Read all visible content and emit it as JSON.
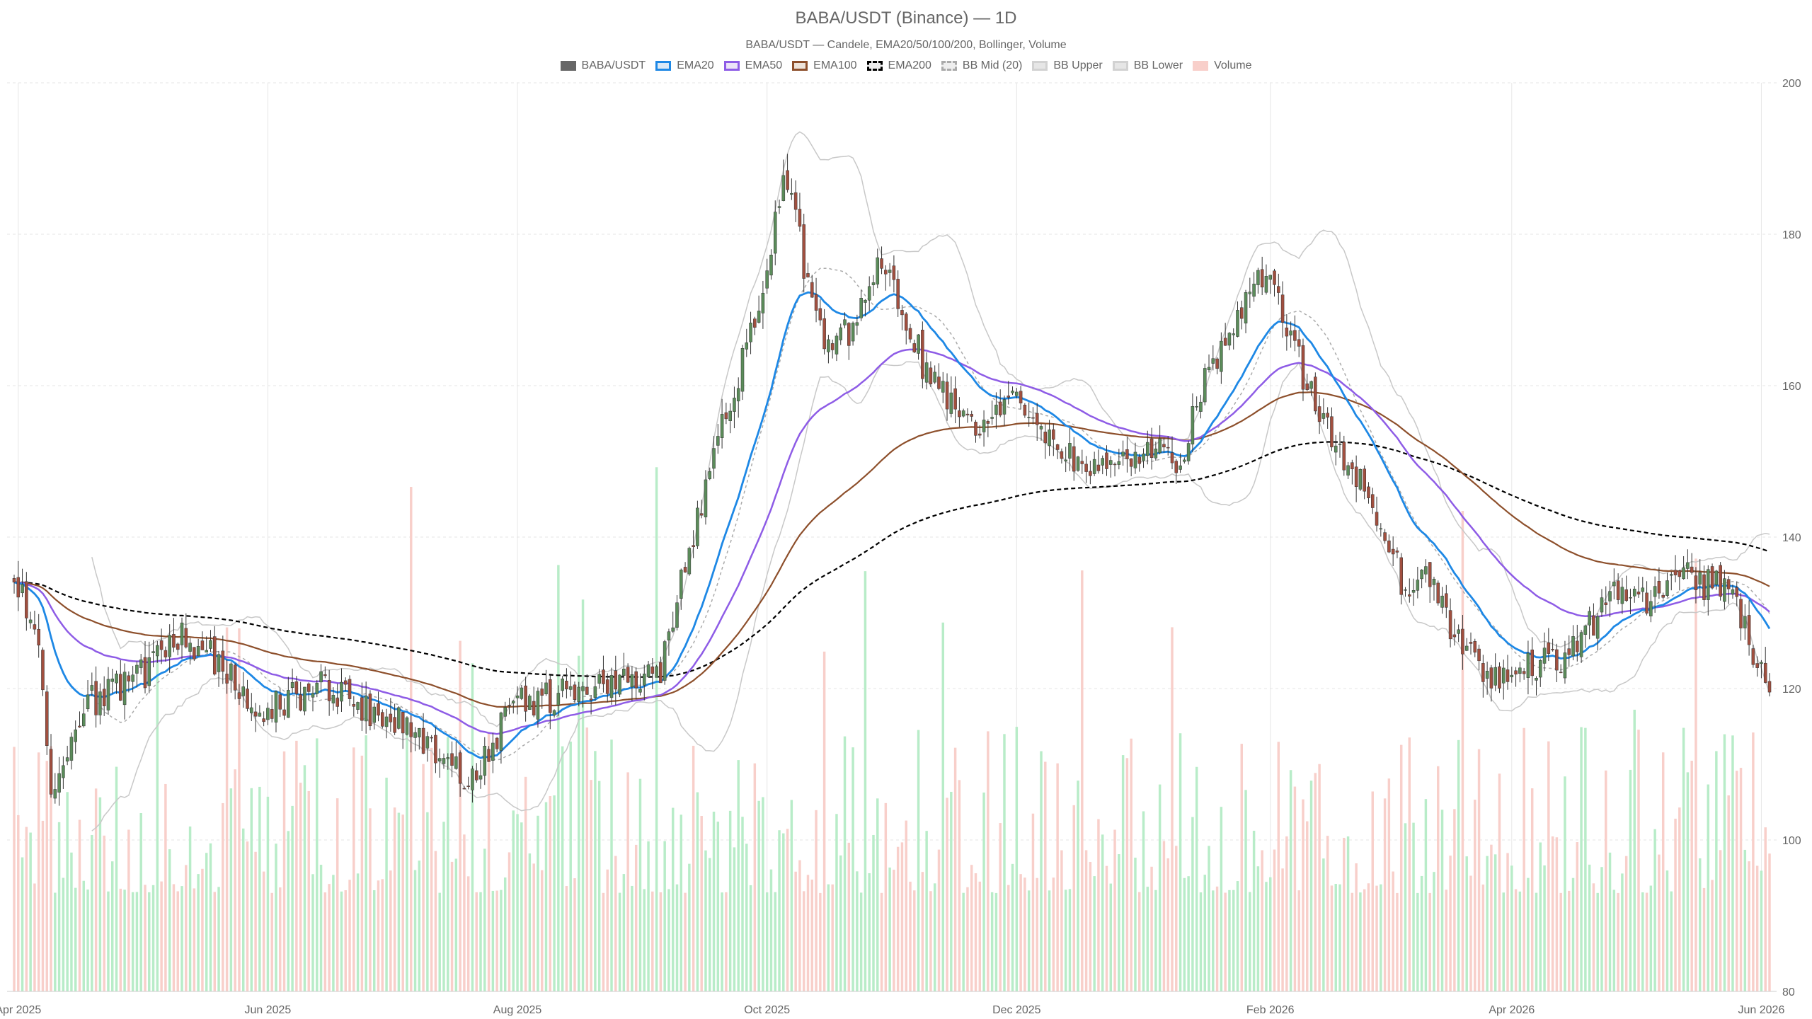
{
  "chart_data": {
    "type": "candlestick",
    "title": "BABA/USDT (Binance) — 1D",
    "subtitle": "BABA/USDT — Candele, EMA20/50/100/200, Bollinger, Volume",
    "legend": [
      {
        "name": "BABA/USDT",
        "fill": "#666666",
        "stroke": "#666666",
        "dash": false
      },
      {
        "name": "EMA20",
        "fill": "#dbe9f6",
        "stroke": "#1e88e5",
        "dash": false
      },
      {
        "name": "EMA50",
        "fill": "#ece3f8",
        "stroke": "#8e5ce6",
        "dash": false
      },
      {
        "name": "EMA100",
        "fill": "#eee3d9",
        "stroke": "#8d4f2b",
        "dash": false
      },
      {
        "name": "EMA200",
        "fill": "#eeeeee",
        "stroke": "#000000",
        "dash": true
      },
      {
        "name": "BB Mid (20)",
        "fill": "#eeeeee",
        "stroke": "#aaaaaa",
        "dash": true
      },
      {
        "name": "BB Upper",
        "fill": "#e6e6e6",
        "stroke": "#d2d2d2",
        "dash": false
      },
      {
        "name": "BB Lower",
        "fill": "#e6e6e6",
        "stroke": "#d2d2d2",
        "dash": false
      },
      {
        "name": "Volume",
        "fill": "#f8cfca",
        "stroke": "#f8cfca",
        "dash": false
      }
    ],
    "x_tick_labels": [
      "Apr 2025",
      "Jun 2025",
      "Aug 2025",
      "Oct 2025",
      "Dec 2025",
      "Feb 2026",
      "Apr 2026",
      "Jun 2026"
    ],
    "x_tick_dates": [
      "2025-04-01",
      "2025-06-01",
      "2025-08-01",
      "2025-10-01",
      "2025-12-01",
      "2026-02-01",
      "2026-04-01",
      "2026-06-01"
    ],
    "x_range": [
      "2025-03-31",
      "2026-06-03"
    ],
    "y_ticks": [
      80,
      100,
      120,
      140,
      160,
      180,
      200
    ],
    "ylim": [
      80,
      200
    ],
    "grid": true,
    "legend_position": "top-center",
    "colors": {
      "up": "#5b8c5a",
      "down": "#a14f3f",
      "wick": "#333333",
      "vol_up": "#b8ecc8",
      "vol_down": "#f8cfca",
      "bb_band": "#c8c8c8",
      "bb_mid": "#aaaaaa",
      "ema20": "#1e88e5",
      "ema50": "#8e5ce6",
      "ema100": "#8d4f2b",
      "ema200": "#000000"
    },
    "close_anchors": [
      [
        "2025-04-01",
        133
      ],
      [
        "2025-04-05",
        130
      ],
      [
        "2025-04-07",
        118
      ],
      [
        "2025-04-09",
        106
      ],
      [
        "2025-04-12",
        112
      ],
      [
        "2025-04-18",
        118
      ],
      [
        "2025-04-25",
        120
      ],
      [
        "2025-05-02",
        122
      ],
      [
        "2025-05-10",
        127
      ],
      [
        "2025-05-17",
        125
      ],
      [
        "2025-05-25",
        120
      ],
      [
        "2025-06-01",
        117
      ],
      [
        "2025-06-08",
        119
      ],
      [
        "2025-06-15",
        121
      ],
      [
        "2025-06-22",
        118
      ],
      [
        "2025-07-01",
        116
      ],
      [
        "2025-07-08",
        114
      ],
      [
        "2025-07-15",
        110
      ],
      [
        "2025-07-20",
        108
      ],
      [
        "2025-07-25",
        112
      ],
      [
        "2025-08-01",
        118
      ],
      [
        "2025-08-10",
        119
      ],
      [
        "2025-08-20",
        120
      ],
      [
        "2025-08-31",
        121
      ],
      [
        "2025-09-05",
        123
      ],
      [
        "2025-09-09",
        132
      ],
      [
        "2025-09-14",
        142
      ],
      [
        "2025-09-18",
        153
      ],
      [
        "2025-09-23",
        160
      ],
      [
        "2025-09-27",
        167
      ],
      [
        "2025-10-02",
        178
      ],
      [
        "2025-10-05",
        187
      ],
      [
        "2025-10-08",
        182
      ],
      [
        "2025-10-12",
        170
      ],
      [
        "2025-10-16",
        164
      ],
      [
        "2025-10-22",
        168
      ],
      [
        "2025-10-29",
        176
      ],
      [
        "2025-11-02",
        172
      ],
      [
        "2025-11-08",
        163
      ],
      [
        "2025-11-15",
        158
      ],
      [
        "2025-11-22",
        155
      ],
      [
        "2025-11-29",
        158
      ],
      [
        "2025-12-06",
        156
      ],
      [
        "2025-12-13",
        151
      ],
      [
        "2025-12-20",
        149
      ],
      [
        "2025-12-27",
        150
      ],
      [
        "2026-01-03",
        152
      ],
      [
        "2026-01-10",
        150
      ],
      [
        "2026-01-15",
        160
      ],
      [
        "2026-01-21",
        166
      ],
      [
        "2026-01-27",
        171
      ],
      [
        "2026-02-01",
        176
      ],
      [
        "2026-02-05",
        168
      ],
      [
        "2026-02-10",
        160
      ],
      [
        "2026-02-16",
        153
      ],
      [
        "2026-02-22",
        148
      ],
      [
        "2026-03-01",
        141
      ],
      [
        "2026-03-06",
        133
      ],
      [
        "2026-03-12",
        135
      ],
      [
        "2026-03-18",
        127
      ],
      [
        "2026-03-24",
        123
      ],
      [
        "2026-03-31",
        121
      ],
      [
        "2026-04-07",
        123
      ],
      [
        "2026-04-14",
        124
      ],
      [
        "2026-04-20",
        128
      ],
      [
        "2026-04-26",
        134
      ],
      [
        "2026-05-02",
        131
      ],
      [
        "2026-05-08",
        133
      ],
      [
        "2026-05-12",
        137
      ],
      [
        "2026-05-16",
        133
      ],
      [
        "2026-05-22",
        134
      ],
      [
        "2026-05-28",
        128
      ],
      [
        "2026-06-03",
        120
      ]
    ]
  }
}
